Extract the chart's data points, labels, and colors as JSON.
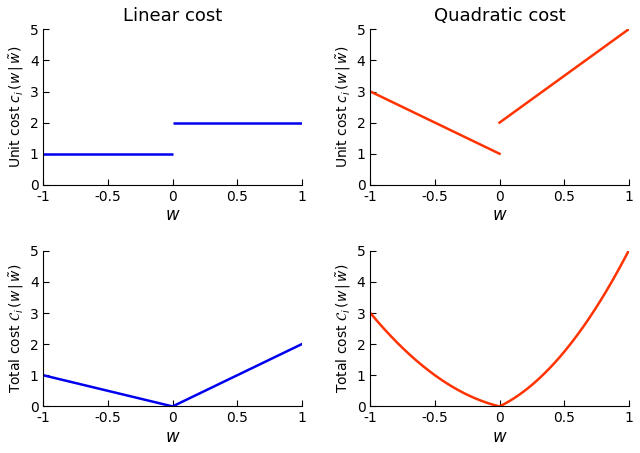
{
  "title_linear": "Linear cost",
  "title_quadratic": "Quadratic cost",
  "ylabel_unit": "Unit cost $c_i\\,(w\\,|\\,\\tilde{w})$",
  "ylabel_total": "Total cost $\\mathcal{C}_i\\,(w\\,|\\,\\tilde{w})$",
  "xlabel": "$w$",
  "xlim": [
    -1,
    1
  ],
  "ylim_unit": [
    0,
    5
  ],
  "ylim_total": [
    0,
    5
  ],
  "blue_color": "#0000EE",
  "red_color": "#FF3300",
  "linewidth": 1.8,
  "xticks": [
    -1,
    -0.5,
    0,
    0.5,
    1
  ],
  "yticks": [
    0,
    1,
    2,
    3,
    4,
    5
  ],
  "xtick_labels": [
    "-1",
    "-0.5",
    "0",
    "0.5",
    "1"
  ],
  "title_fontsize": 13,
  "label_fontsize": 10,
  "tick_fontsize": 10,
  "xlabel_fontsize": 12
}
